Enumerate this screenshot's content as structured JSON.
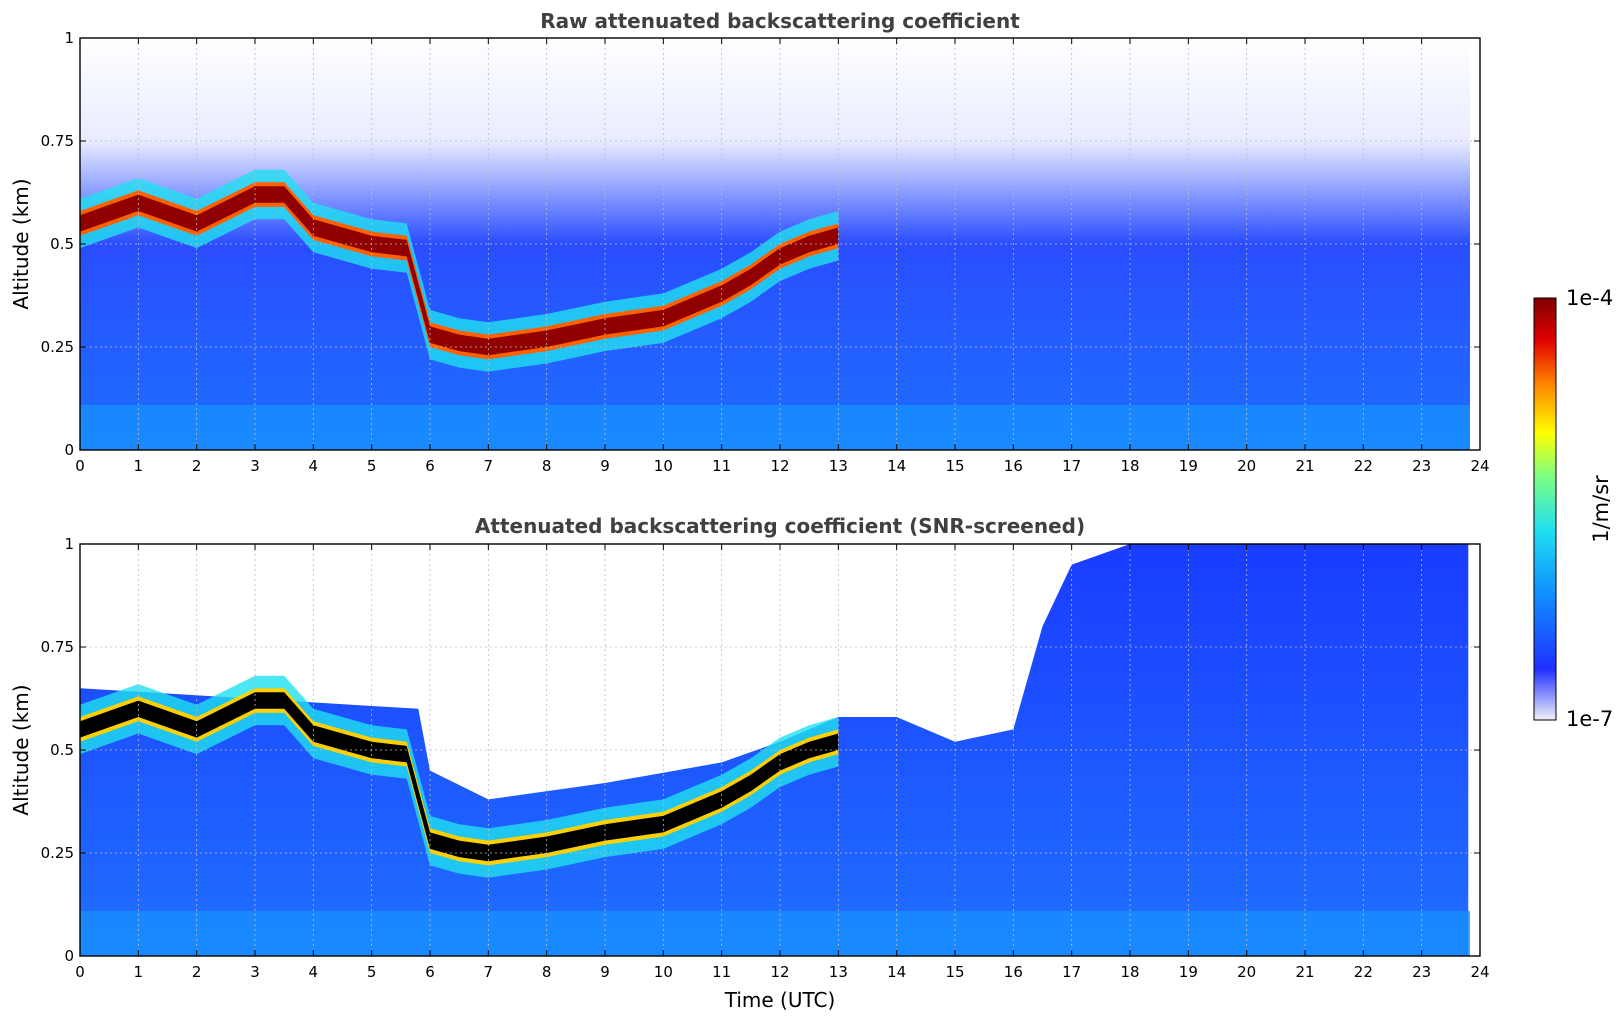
{
  "chart_data": [
    {
      "type": "heatmap",
      "title": "Raw attenuated backscattering coefficient",
      "xlabel": "",
      "ylabel": "Altitude (km)",
      "xlim": [
        0,
        24
      ],
      "ylim": [
        0,
        1
      ],
      "xticks": [
        "0",
        "1",
        "2",
        "3",
        "4",
        "5",
        "6",
        "7",
        "8",
        "9",
        "10",
        "11",
        "12",
        "13",
        "14",
        "15",
        "16",
        "17",
        "18",
        "19",
        "20",
        "21",
        "22",
        "23",
        "24"
      ],
      "yticks": [
        "0",
        "0.25",
        "0.5",
        "0.75",
        "1"
      ],
      "grid": true,
      "layer_height_km": {
        "time_utc": [
          0,
          1,
          2,
          3,
          3.5,
          4,
          5,
          5.6,
          6,
          6.5,
          7,
          8,
          9,
          10,
          11,
          11.5,
          12,
          12.5,
          13
        ],
        "altitude_km": [
          0.55,
          0.6,
          0.55,
          0.62,
          0.62,
          0.54,
          0.5,
          0.49,
          0.28,
          0.26,
          0.25,
          0.27,
          0.3,
          0.32,
          0.38,
          0.42,
          0.47,
          0.5,
          0.52
        ]
      }
    },
    {
      "type": "heatmap",
      "title": "Attenuated backscattering coefficient (SNR-screened)",
      "xlabel": "Time (UTC)",
      "ylabel": "Altitude (km)",
      "xlim": [
        0,
        24
      ],
      "ylim": [
        0,
        1
      ],
      "xticks": [
        "0",
        "1",
        "2",
        "3",
        "4",
        "5",
        "6",
        "7",
        "8",
        "9",
        "10",
        "11",
        "12",
        "13",
        "14",
        "15",
        "16",
        "17",
        "18",
        "19",
        "20",
        "21",
        "22",
        "23",
        "24"
      ],
      "yticks": [
        "0",
        "0.25",
        "0.5",
        "0.75",
        "1"
      ],
      "grid": true,
      "valid_data_top_km": {
        "time_utc": [
          0,
          5.8,
          6,
          7,
          9,
          11,
          12,
          13,
          14,
          15,
          16,
          16.5,
          17,
          18,
          24
        ],
        "altitude_km": [
          0.65,
          0.6,
          0.45,
          0.38,
          0.42,
          0.47,
          0.52,
          0.58,
          0.58,
          0.52,
          0.55,
          0.8,
          0.95,
          1.0,
          1.0
        ]
      }
    }
  ],
  "colorbar": {
    "label": "1/m/sr",
    "max_label": "1e-4",
    "min_label": "1e-7",
    "scale": "log",
    "range": [
      1e-07,
      0.0001
    ],
    "colormap": [
      "#f2f2fa",
      "#2030ff",
      "#1090ff",
      "#20e0f0",
      "#80ff80",
      "#ffff00",
      "#ff8000",
      "#e00000",
      "#800000"
    ]
  }
}
